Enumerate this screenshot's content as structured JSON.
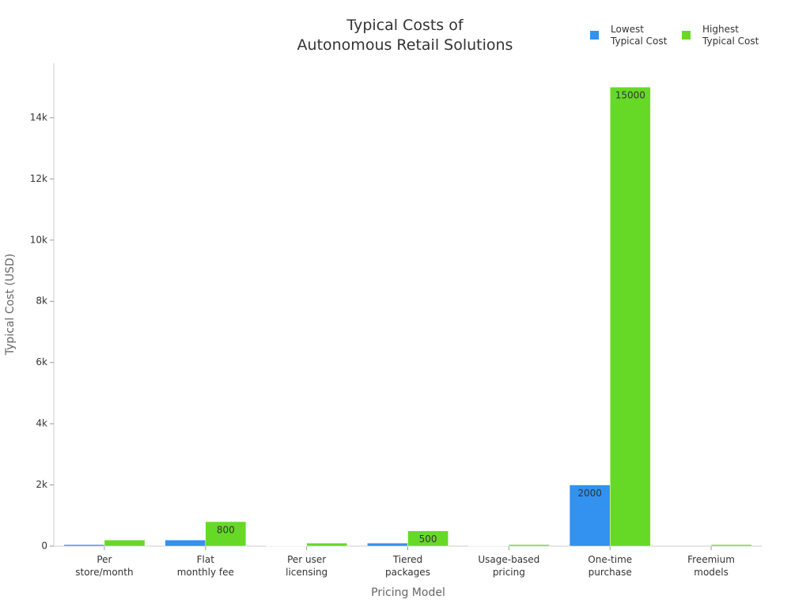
{
  "chart_data": {
    "type": "bar",
    "title": "Typical Costs of\nAutonomous Retail Solutions",
    "x_label": "Pricing Model",
    "y_label": "Typical Cost (USD)",
    "categories": [
      "Per\nstore/month",
      "Flat\nmonthly fee",
      "Per user\nlicensing",
      "Tiered\npackages",
      "Usage-based\npricing",
      "One-time\npurchase",
      "Freemium\nmodels"
    ],
    "series": [
      {
        "name": "Lowest\nTypical Cost",
        "color": "#3391f0",
        "values": [
          50,
          200,
          10,
          100,
          5,
          2000,
          0
        ]
      },
      {
        "name": "Highest\nTypical Cost",
        "color": "#66d926",
        "values": [
          200,
          800,
          100,
          500,
          50,
          15000,
          50
        ]
      }
    ],
    "ylim": [
      0,
      15780
    ],
    "yticks": [
      0,
      {
        "value": 2000,
        "label": "2k"
      },
      {
        "value": 4000,
        "label": "4k"
      },
      {
        "value": 6000,
        "label": "6k"
      },
      {
        "value": 8000,
        "label": "8k"
      },
      {
        "value": 10000,
        "label": "10k"
      },
      {
        "value": 12000,
        "label": "12k"
      },
      {
        "value": 14000,
        "label": "14k"
      }
    ],
    "legend": "top-right"
  }
}
